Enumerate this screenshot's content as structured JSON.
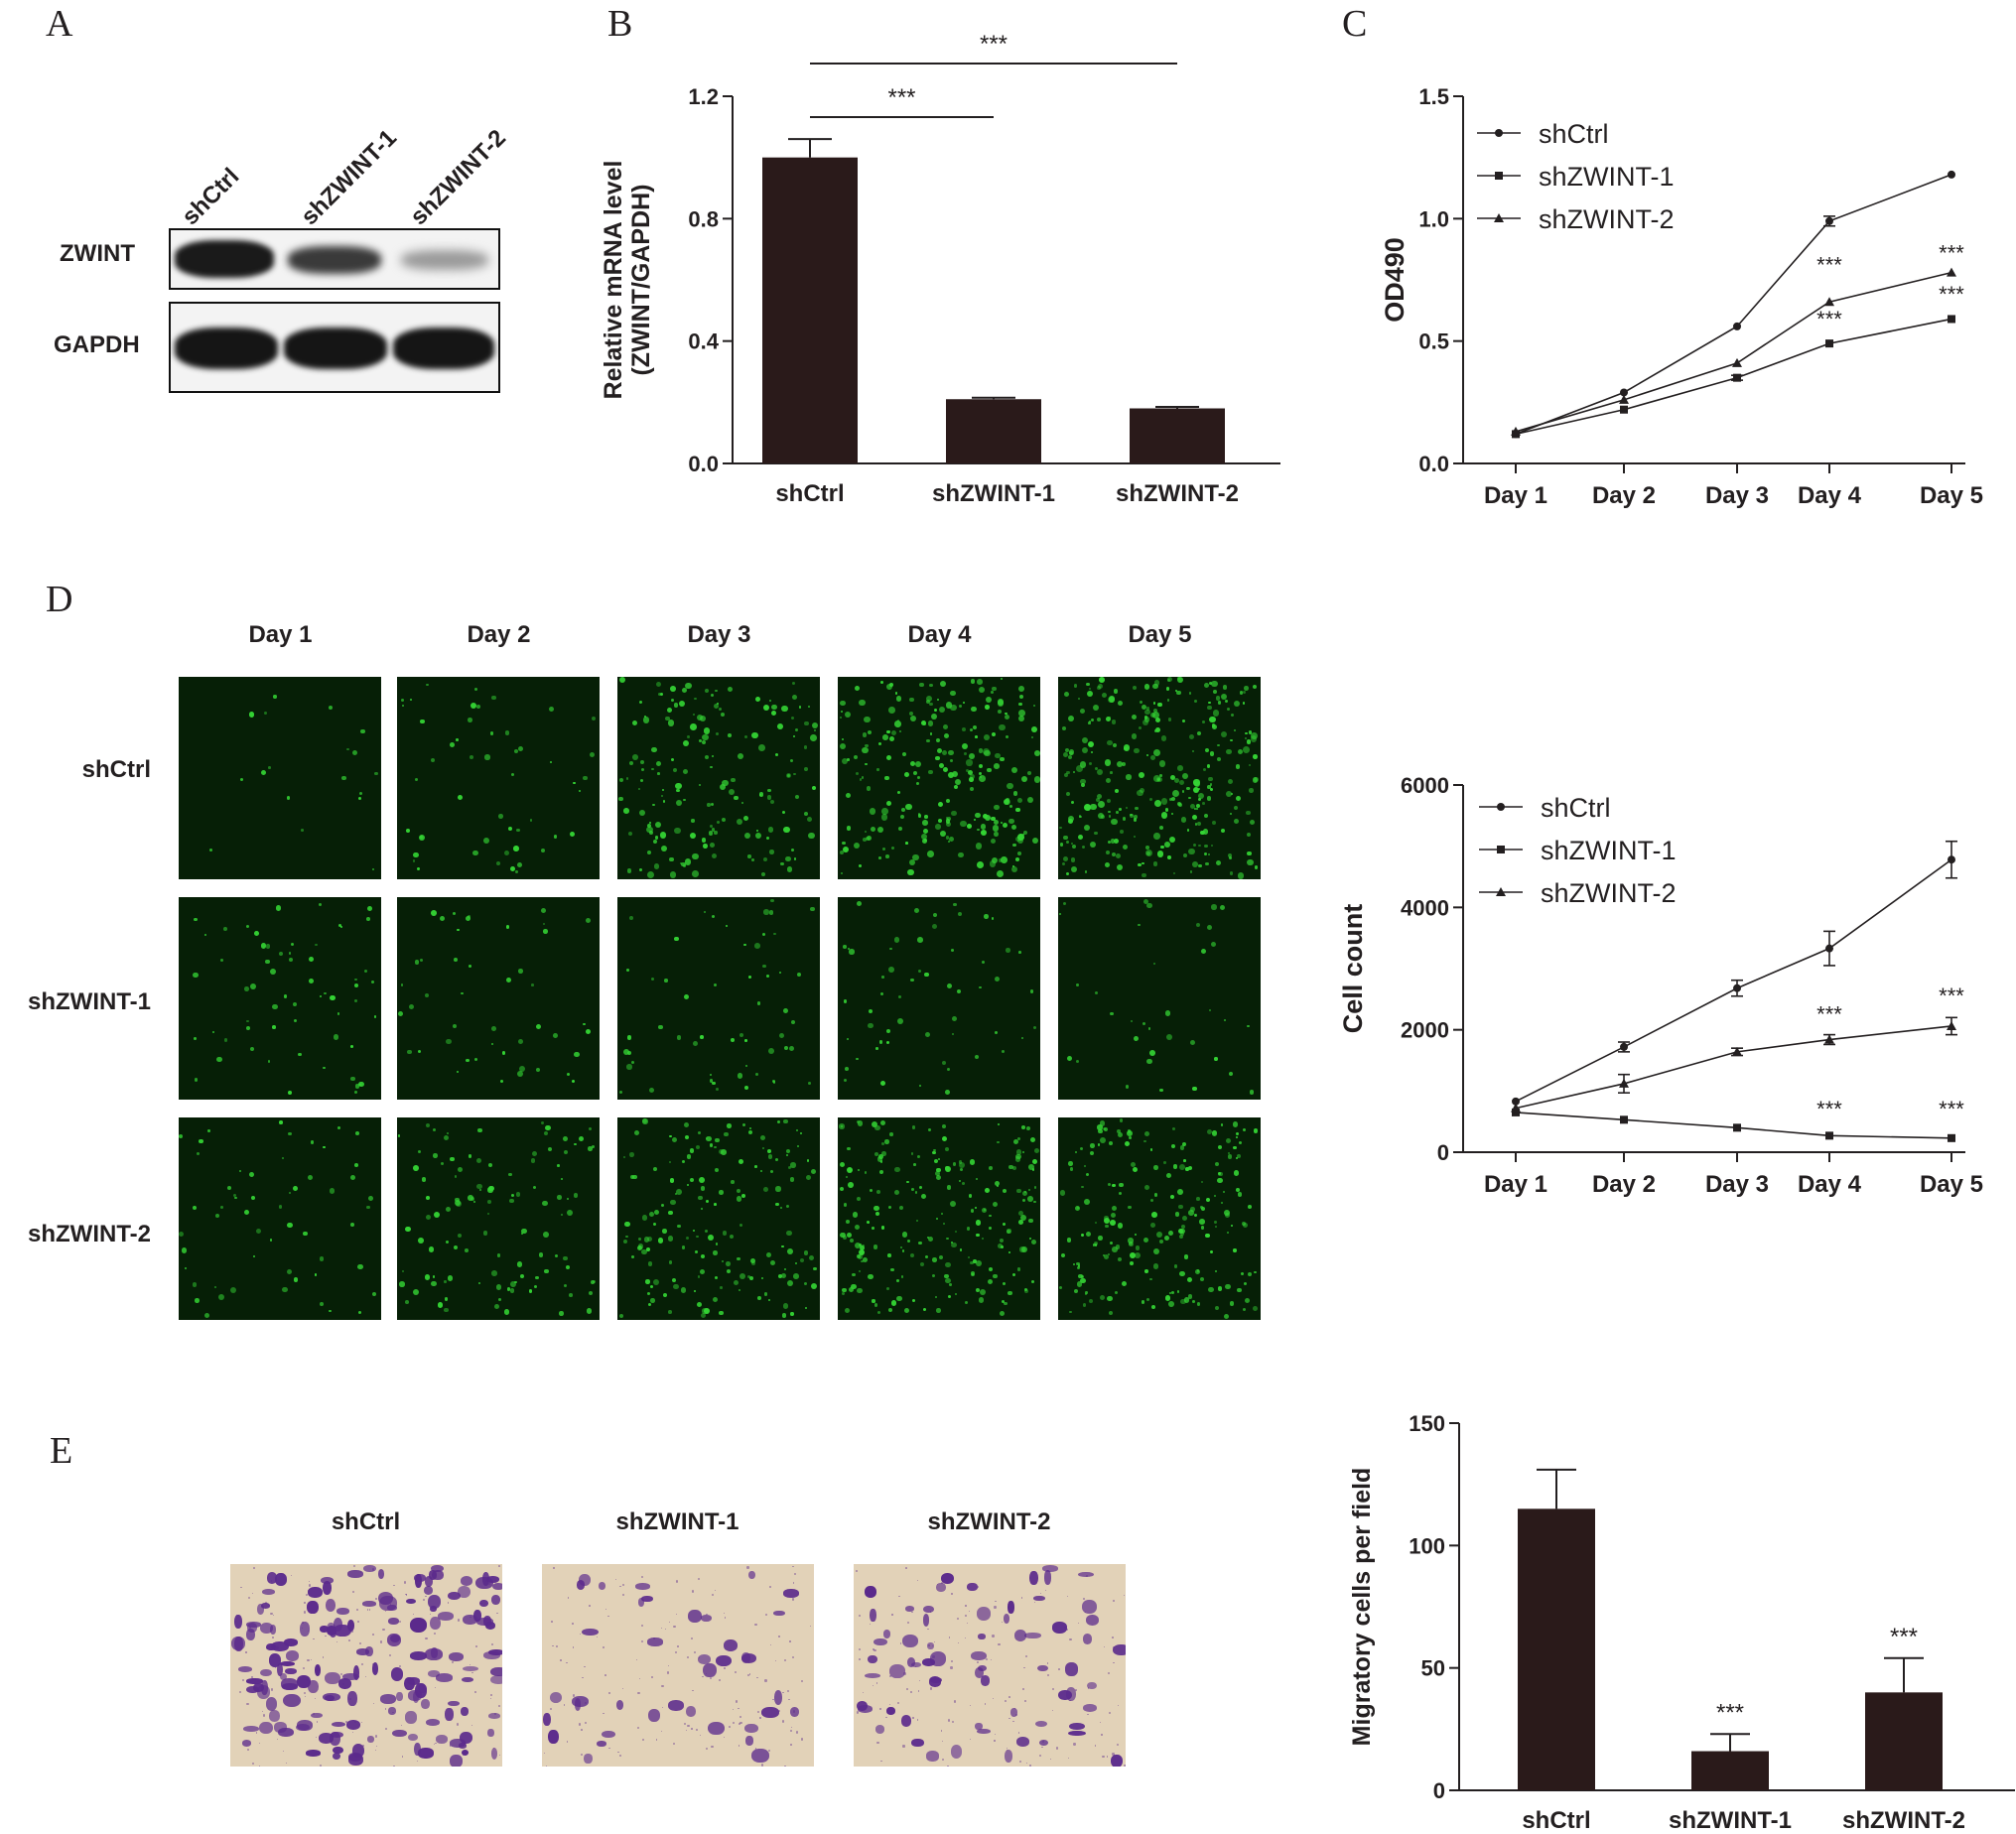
{
  "panels": {
    "A": {
      "label": "A",
      "lanes": [
        "shCtrl",
        "shZWINT-1",
        "shZWINT-2"
      ],
      "proteins": [
        "ZWINT",
        "GAPDH"
      ]
    },
    "B": {
      "label": "B"
    },
    "C": {
      "label": "C"
    },
    "D": {
      "label": "D",
      "columns": [
        "Day 1",
        "Day 2",
        "Day 3",
        "Day 4",
        "Day 5"
      ],
      "rows": [
        "shCtrl",
        "shZWINT-1",
        "shZWINT-2"
      ]
    },
    "E": {
      "label": "E",
      "columns": [
        "shCtrl",
        "shZWINT-1",
        "shZWINT-2"
      ]
    }
  },
  "colors": {
    "bar": "#2a1a1a",
    "line": "#231f20",
    "fluorescence": "#34d434",
    "crystal_violet": "#5b2a8c"
  },
  "chart_data": [
    {
      "id": "B",
      "type": "bar",
      "categories": [
        "shCtrl",
        "shZWINT-1",
        "shZWINT-2"
      ],
      "values": [
        1.0,
        0.21,
        0.18
      ],
      "errors": [
        0.06,
        0.005,
        0.005
      ],
      "ylabel_lines": [
        "Relative mRNA level",
        "(ZWINT/GAPDH)"
      ],
      "ylim": [
        0,
        1.2
      ],
      "yticks": [
        "0.0",
        "0.4",
        "0.8",
        "1.2"
      ],
      "significance": [
        {
          "from": "shCtrl",
          "to": "shZWINT-1",
          "label": "***"
        },
        {
          "from": "shCtrl",
          "to": "shZWINT-2",
          "label": "***"
        }
      ]
    },
    {
      "id": "C",
      "type": "line",
      "x": [
        "Day 1",
        "Day 2",
        "Day 3",
        "Day 4",
        "Day 5"
      ],
      "ylabel": "OD490",
      "ylim": [
        0,
        1.5
      ],
      "yticks": [
        "0.0",
        "0.5",
        "1.0",
        "1.5"
      ],
      "legend_position": "top-left",
      "series": [
        {
          "name": "shCtrl",
          "marker": "circle",
          "values": [
            0.12,
            0.29,
            0.56,
            0.99,
            1.18
          ],
          "errors": [
            0,
            0,
            0,
            0.02,
            0
          ]
        },
        {
          "name": "shZWINT-1",
          "marker": "square",
          "values": [
            0.12,
            0.22,
            0.35,
            0.49,
            0.59
          ],
          "errors": [
            0,
            0,
            0.01,
            0,
            0
          ]
        },
        {
          "name": "shZWINT-2",
          "marker": "triangle",
          "values": [
            0.13,
            0.26,
            0.41,
            0.66,
            0.78
          ],
          "errors": [
            0,
            0,
            0,
            0,
            0
          ]
        }
      ],
      "annotations": [
        {
          "x": "Day 4",
          "y": 0.78,
          "text": "***"
        },
        {
          "x": "Day 4",
          "y": 0.56,
          "text": "***"
        },
        {
          "x": "Day 5",
          "y": 0.83,
          "text": "***"
        },
        {
          "x": "Day 5",
          "y": 0.66,
          "text": "***"
        }
      ]
    },
    {
      "id": "D-count",
      "type": "line",
      "x": [
        "Day 1",
        "Day 2",
        "Day 3",
        "Day 4",
        "Day 5"
      ],
      "ylabel": "Cell count",
      "ylim": [
        0,
        6000
      ],
      "yticks": [
        "0",
        "2000",
        "4000",
        "6000"
      ],
      "legend_position": "top-left",
      "series": [
        {
          "name": "shCtrl",
          "marker": "circle",
          "values": [
            830,
            1720,
            2680,
            3330,
            4780
          ],
          "errors": [
            0,
            80,
            130,
            280,
            300
          ]
        },
        {
          "name": "shZWINT-1",
          "marker": "square",
          "values": [
            650,
            530,
            400,
            270,
            230
          ],
          "errors": [
            0,
            0,
            0,
            0,
            0
          ]
        },
        {
          "name": "shZWINT-2",
          "marker": "triangle",
          "values": [
            720,
            1120,
            1640,
            1840,
            2060
          ],
          "errors": [
            0,
            150,
            60,
            80,
            140
          ]
        }
      ],
      "annotations": [
        {
          "x": "Day 4",
          "y": 2130,
          "text": "***"
        },
        {
          "x": "Day 5",
          "y": 2430,
          "text": "***"
        },
        {
          "x": "Day 4",
          "y": 580,
          "text": "***"
        },
        {
          "x": "Day 5",
          "y": 580,
          "text": "***"
        }
      ]
    },
    {
      "id": "E",
      "type": "bar",
      "categories": [
        "shCtrl",
        "shZWINT-1",
        "shZWINT-2"
      ],
      "values": [
        115,
        16,
        40
      ],
      "errors": [
        16,
        7,
        14
      ],
      "ylabel": "Migratory cells per field",
      "ylim": [
        0,
        150
      ],
      "yticks": [
        "0",
        "50",
        "100",
        "150"
      ],
      "annotations": [
        {
          "category": "shZWINT-1",
          "text": "***"
        },
        {
          "category": "shZWINT-2",
          "text": "***"
        }
      ]
    }
  ]
}
